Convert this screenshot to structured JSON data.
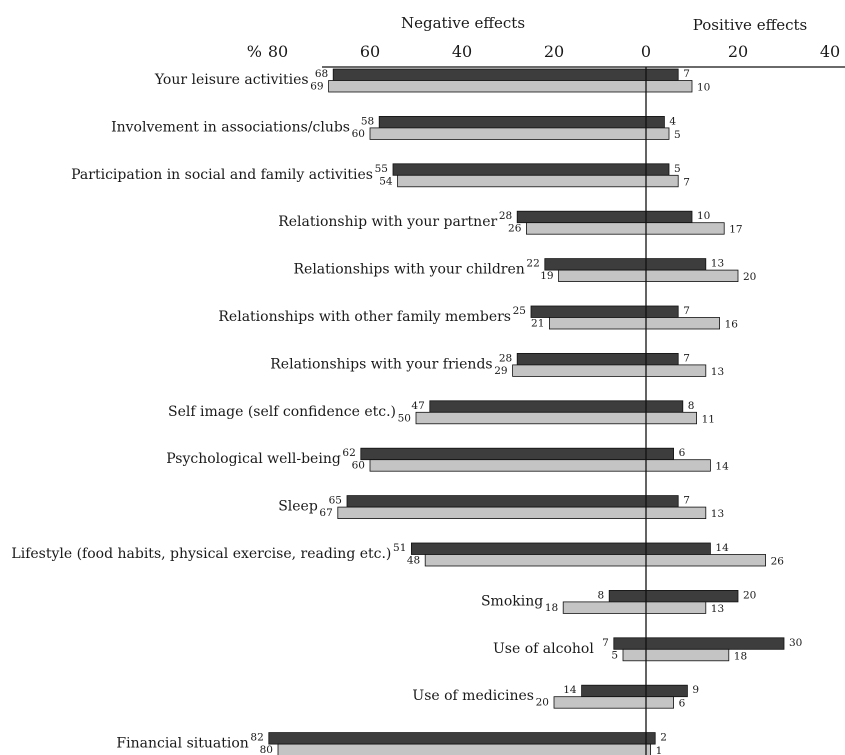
{
  "chart_data": {
    "type": "bar",
    "orientation": "horizontal-diverging",
    "header_left": "Negative effects",
    "header_right": "Positive effects",
    "axis_unit_label": "%",
    "x_ticks_negative": [
      80,
      60,
      40,
      20,
      0
    ],
    "x_ticks_positive": [
      20,
      40
    ],
    "xlim": [
      -80,
      40
    ],
    "grid": false,
    "colors": {
      "series_a": "#3d3d3d",
      "series_b": "#c4c4c4"
    },
    "categories": [
      "Your leisure activities",
      "Involvement in associations/clubs",
      "Participation in social and family activities",
      "Relationship with your partner",
      "Relationships with your children",
      "Relationships with other family members",
      "Relationships with your friends",
      "Self image (self confidence etc.)",
      "Psychological well-being",
      "Sleep",
      "Lifestyle (food habits, physical exercise, reading etc.)",
      "Smoking",
      "Use of alcohol",
      "Use of medicines",
      "Financial situation"
    ],
    "series": [
      {
        "negative": [
          68,
          58,
          55,
          28,
          22,
          25,
          28,
          47,
          62,
          65,
          51,
          8,
          7,
          14,
          82
        ],
        "positive": [
          7,
          4,
          5,
          10,
          13,
          7,
          7,
          8,
          6,
          7,
          14,
          20,
          30,
          9,
          2
        ]
      },
      {
        "negative": [
          69,
          60,
          54,
          26,
          19,
          21,
          29,
          50,
          60,
          67,
          48,
          18,
          5,
          20,
          80
        ],
        "positive": [
          10,
          5,
          7,
          17,
          20,
          16,
          13,
          11,
          14,
          13,
          26,
          13,
          18,
          6,
          1
        ]
      }
    ]
  }
}
